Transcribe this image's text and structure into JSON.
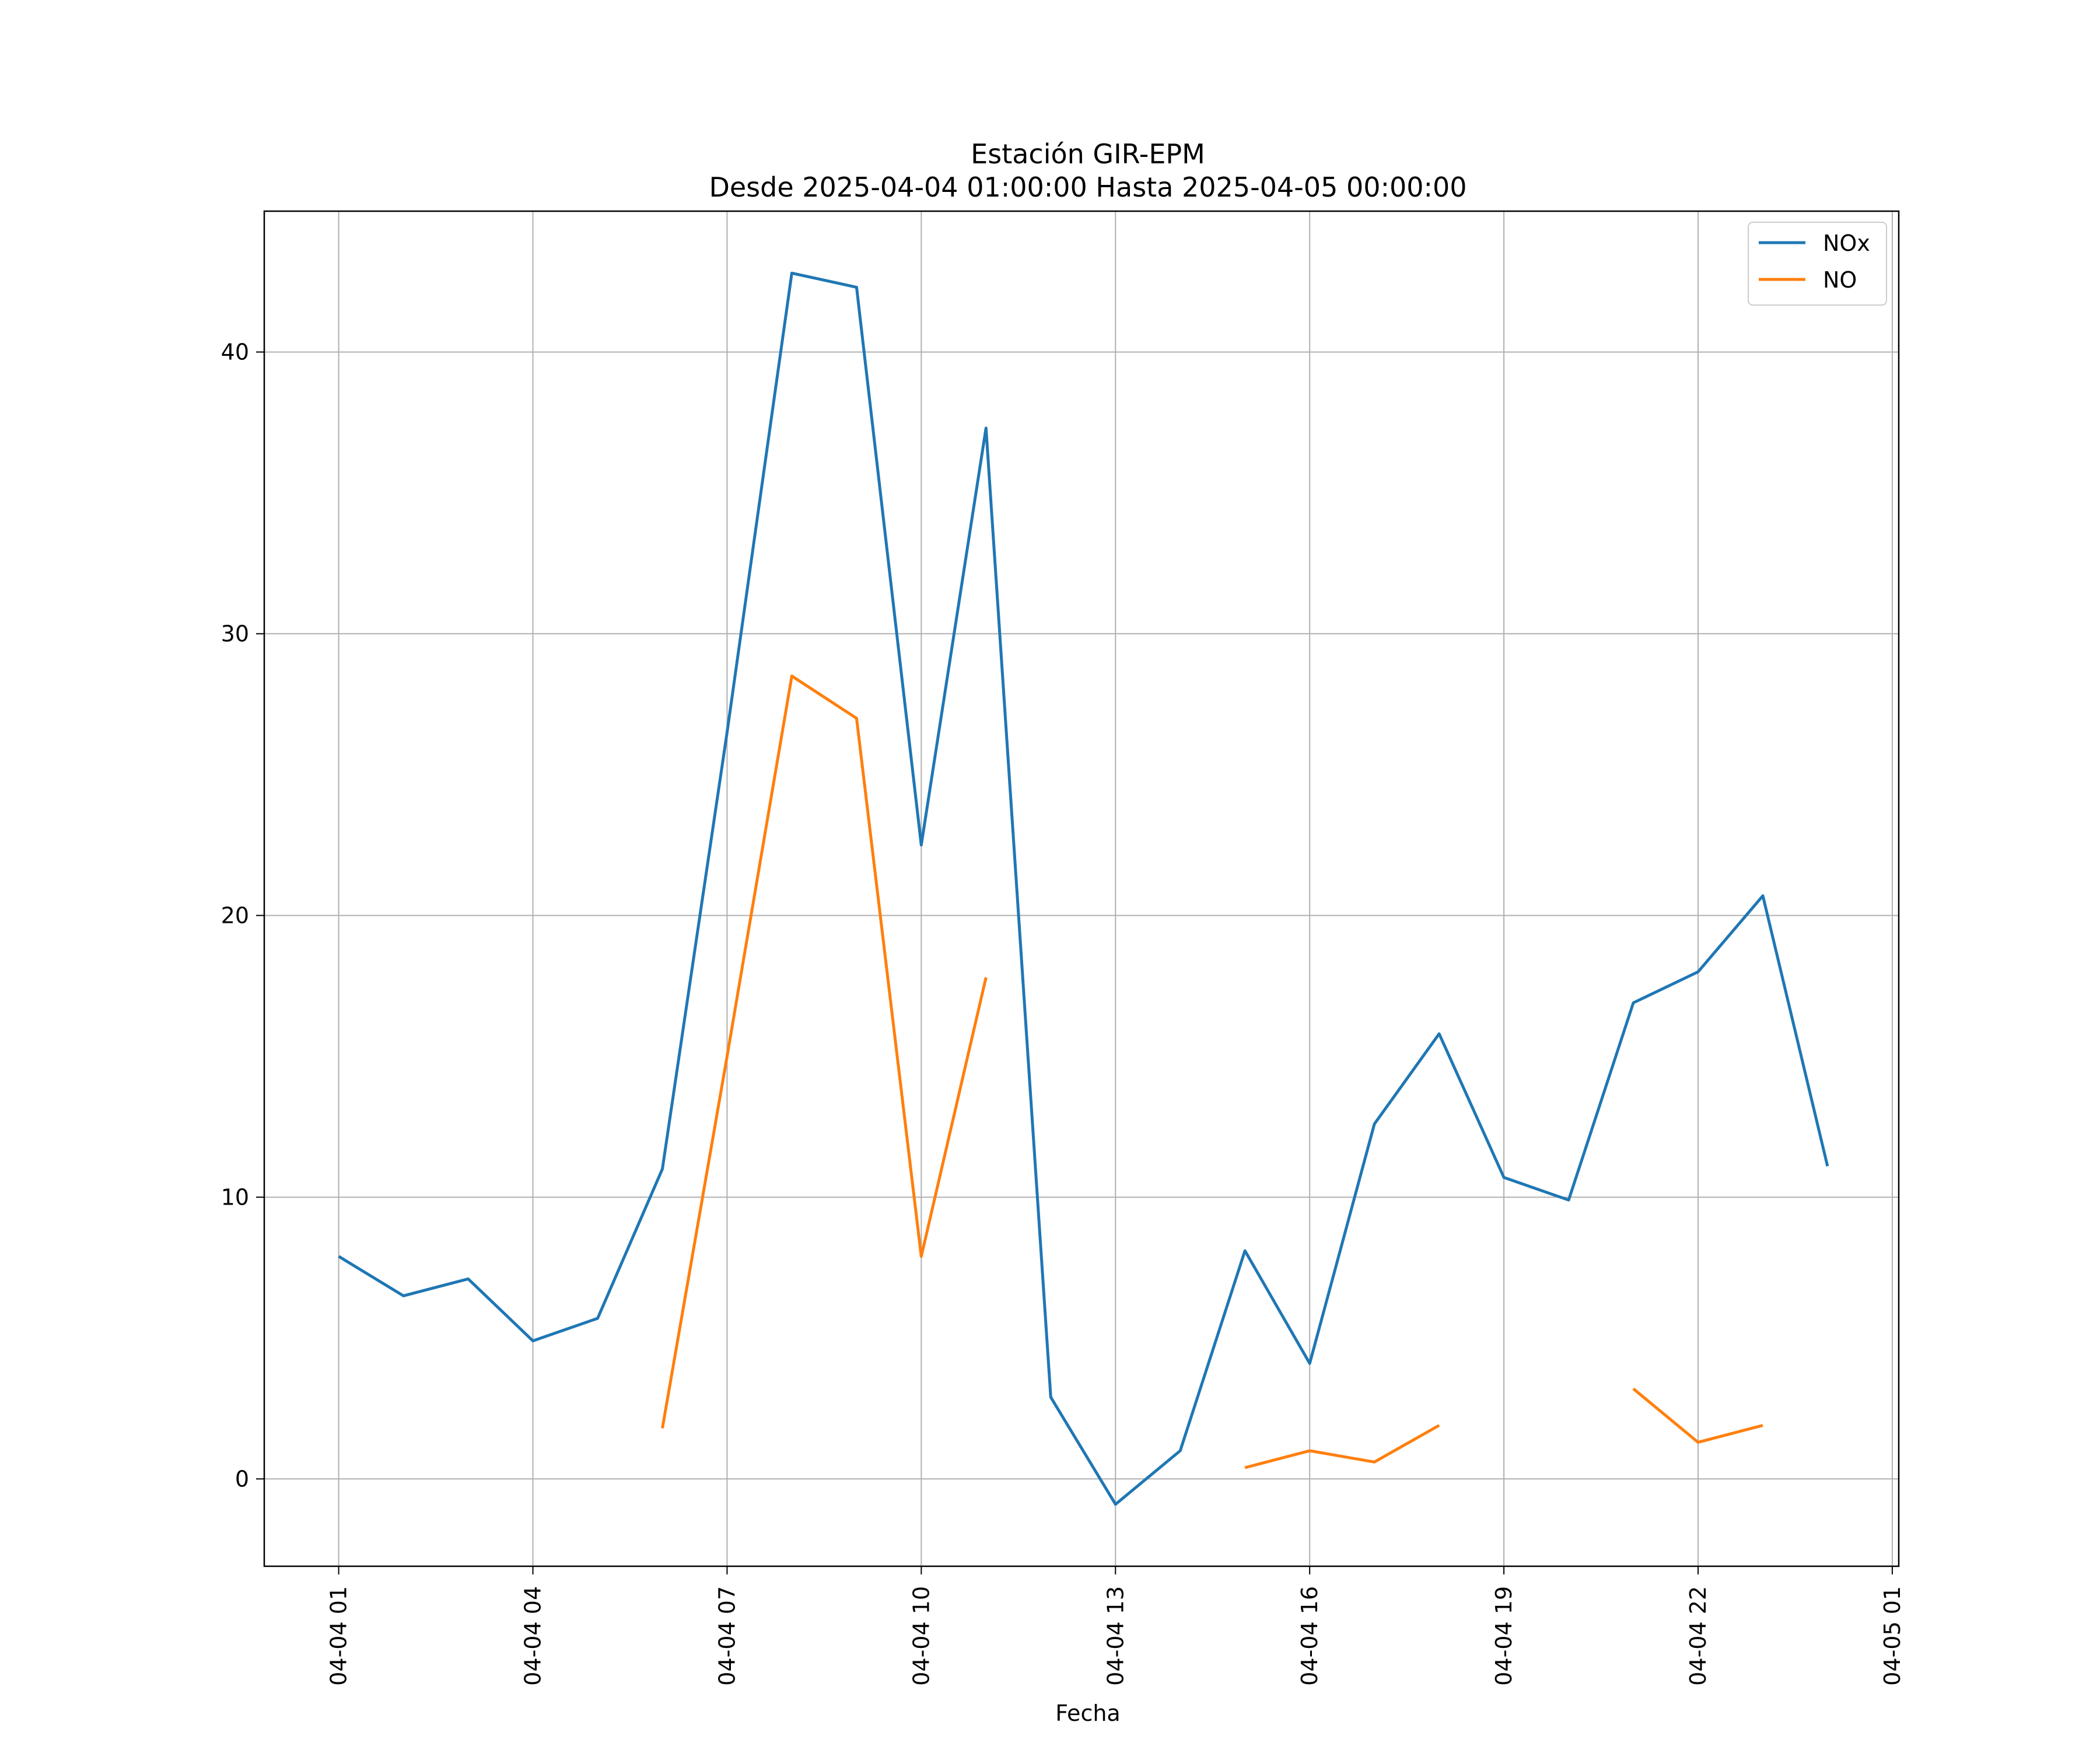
{
  "chart_data": {
    "type": "line",
    "title": "Estación GIR-EPM",
    "subtitle": "Desde 2025-04-04 01:00:00 Hasta 2025-04-05 00:00:00",
    "xlabel": "Fecha",
    "ylabel": "",
    "x": [
      "2025-04-04 01:00",
      "2025-04-04 02:00",
      "2025-04-04 03:00",
      "2025-04-04 04:00",
      "2025-04-04 05:00",
      "2025-04-04 06:00",
      "2025-04-04 07:00",
      "2025-04-04 08:00",
      "2025-04-04 09:00",
      "2025-04-04 10:00",
      "2025-04-04 11:00",
      "2025-04-04 12:00",
      "2025-04-04 13:00",
      "2025-04-04 14:00",
      "2025-04-04 15:00",
      "2025-04-04 16:00",
      "2025-04-04 17:00",
      "2025-04-04 18:00",
      "2025-04-04 19:00",
      "2025-04-04 20:00",
      "2025-04-04 21:00",
      "2025-04-04 22:00",
      "2025-04-04 23:00",
      "2025-04-05 00:00"
    ],
    "series": [
      {
        "name": "NOx",
        "color": "#1f77b4",
        "values": [
          7.9,
          6.5,
          7.1,
          4.9,
          5.7,
          11.0,
          26.5,
          42.8,
          42.3,
          22.5,
          37.3,
          2.9,
          -0.9,
          1.0,
          8.1,
          4.1,
          12.6,
          15.8,
          10.7,
          9.9,
          16.9,
          18.0,
          20.7,
          11.1
        ]
      },
      {
        "name": "NO",
        "color": "#ff7f0e",
        "values": [
          null,
          null,
          null,
          null,
          null,
          1.8,
          15.0,
          28.5,
          27.0,
          7.9,
          17.8,
          null,
          null,
          null,
          0.4,
          1.0,
          0.6,
          1.9,
          null,
          null,
          3.2,
          1.3,
          1.9,
          null
        ]
      }
    ],
    "x_ticks": [
      "04-04 01",
      "04-04 04",
      "04-04 07",
      "04-04 10",
      "04-04 13",
      "04-04 16",
      "04-04 19",
      "04-04 22",
      "04-05 01"
    ],
    "x_tick_hours": [
      0,
      3,
      6,
      9,
      12,
      15,
      18,
      21,
      24
    ],
    "y_ticks": [
      "0",
      "10",
      "20",
      "30",
      "40"
    ],
    "y_tick_values": [
      0,
      10,
      20,
      30,
      40
    ],
    "xlim_hours": [
      -1.15,
      24.1
    ],
    "ylim": [
      -3.1,
      45.0
    ],
    "grid": true,
    "legend": "top-right"
  }
}
